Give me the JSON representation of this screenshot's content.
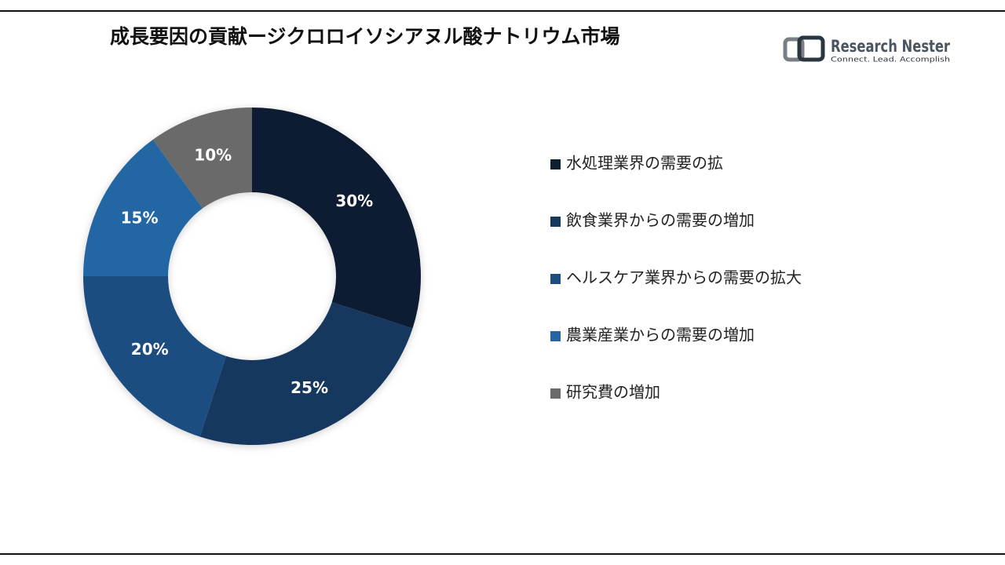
{
  "chart_data": {
    "type": "donut",
    "title": "成長要因の貢献ージクロロイソシアヌル酸ナトリウム市場",
    "categories": [
      "水処理業界の需要の拡",
      "飲食業界からの需要の増加",
      "ヘルスケア業界からの需要の拡大",
      "農業産業からの需要の増加",
      "研究費の増加"
    ],
    "values": [
      30,
      25,
      20,
      15,
      10
    ],
    "value_labels": [
      "30%",
      "25%",
      "20%",
      "15%",
      "10%"
    ],
    "colors": [
      "#0d1f30",
      "#16395e",
      "#1d4e80",
      "#2466a3",
      "#6b6b6b"
    ]
  },
  "logo": {
    "name": "Research Nester",
    "tagline": "Connect. Lead. Accomplish"
  }
}
